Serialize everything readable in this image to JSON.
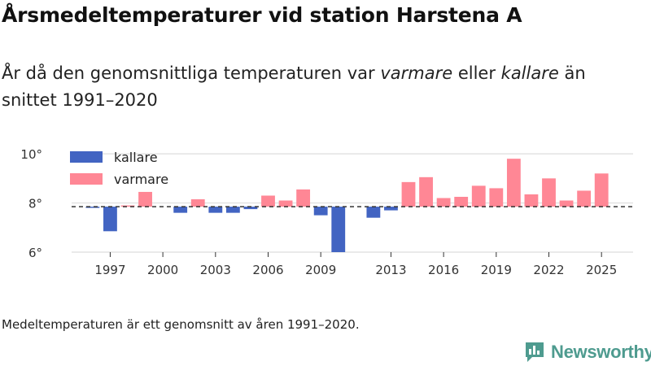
{
  "header": {
    "title": "Årsmedeltemperaturer vid station Harstena A",
    "subtitle_part1": "År då den genomsnittliga temperaturen var ",
    "subtitle_warm": "varmare",
    "subtitle_part2": " eller ",
    "subtitle_cold": "kallare",
    "subtitle_part3": " än snittet 1991–2020"
  },
  "footer": {
    "note": "Medeltemperaturen är ett genomsnitt av åren 1991–2020.",
    "brand": "Newsworthy"
  },
  "colors": {
    "cold": "#4264c2",
    "warm": "#ff8795",
    "baseline": "#333333",
    "grid": "#dddddd",
    "brand": "#4e9b8f"
  },
  "chart_data": {
    "type": "bar",
    "title": "Årsmedeltemperaturer vid station Harstena A",
    "xlabel": "",
    "ylabel": "",
    "ylim": [
      6,
      10.5
    ],
    "xlim": [
      1994.8,
      2026.8
    ],
    "baseline": 7.85,
    "y_ticks": [
      {
        "value": 6,
        "label": "6°"
      },
      {
        "value": 8,
        "label": "8°"
      },
      {
        "value": 10,
        "label": "10°"
      }
    ],
    "x_ticks": [
      1997,
      2000,
      2003,
      2006,
      2009,
      2013,
      2016,
      2019,
      2022,
      2025
    ],
    "legend": {
      "position": "top-left",
      "items": [
        {
          "key": "cold",
          "label": "kallare"
        },
        {
          "key": "warm",
          "label": "varmare"
        }
      ]
    },
    "series": [
      {
        "name": "kallare",
        "color_key": "cold",
        "points": [
          {
            "year": 1996,
            "value": 7.8
          },
          {
            "year": 1997,
            "value": 6.85
          },
          {
            "year": 2001,
            "value": 7.6
          },
          {
            "year": 2003,
            "value": 7.6
          },
          {
            "year": 2004,
            "value": 7.6
          },
          {
            "year": 2005,
            "value": 7.75
          },
          {
            "year": 2009,
            "value": 7.5
          },
          {
            "year": 2010,
            "value": 6.0
          },
          {
            "year": 2012,
            "value": 7.4
          },
          {
            "year": 2013,
            "value": 7.7
          }
        ]
      },
      {
        "name": "varmare",
        "color_key": "warm",
        "points": [
          {
            "year": 1998,
            "value": 7.9
          },
          {
            "year": 1999,
            "value": 8.45
          },
          {
            "year": 2002,
            "value": 8.15
          },
          {
            "year": 2006,
            "value": 8.3
          },
          {
            "year": 2007,
            "value": 8.1
          },
          {
            "year": 2008,
            "value": 8.55
          },
          {
            "year": 2014,
            "value": 8.85
          },
          {
            "year": 2015,
            "value": 9.05
          },
          {
            "year": 2016,
            "value": 8.2
          },
          {
            "year": 2017,
            "value": 8.25
          },
          {
            "year": 2018,
            "value": 8.7
          },
          {
            "year": 2019,
            "value": 8.6
          },
          {
            "year": 2020,
            "value": 9.8
          },
          {
            "year": 2021,
            "value": 8.35
          },
          {
            "year": 2022,
            "value": 9.0
          },
          {
            "year": 2023,
            "value": 8.1
          },
          {
            "year": 2024,
            "value": 8.5
          },
          {
            "year": 2025,
            "value": 9.2
          }
        ]
      }
    ]
  }
}
